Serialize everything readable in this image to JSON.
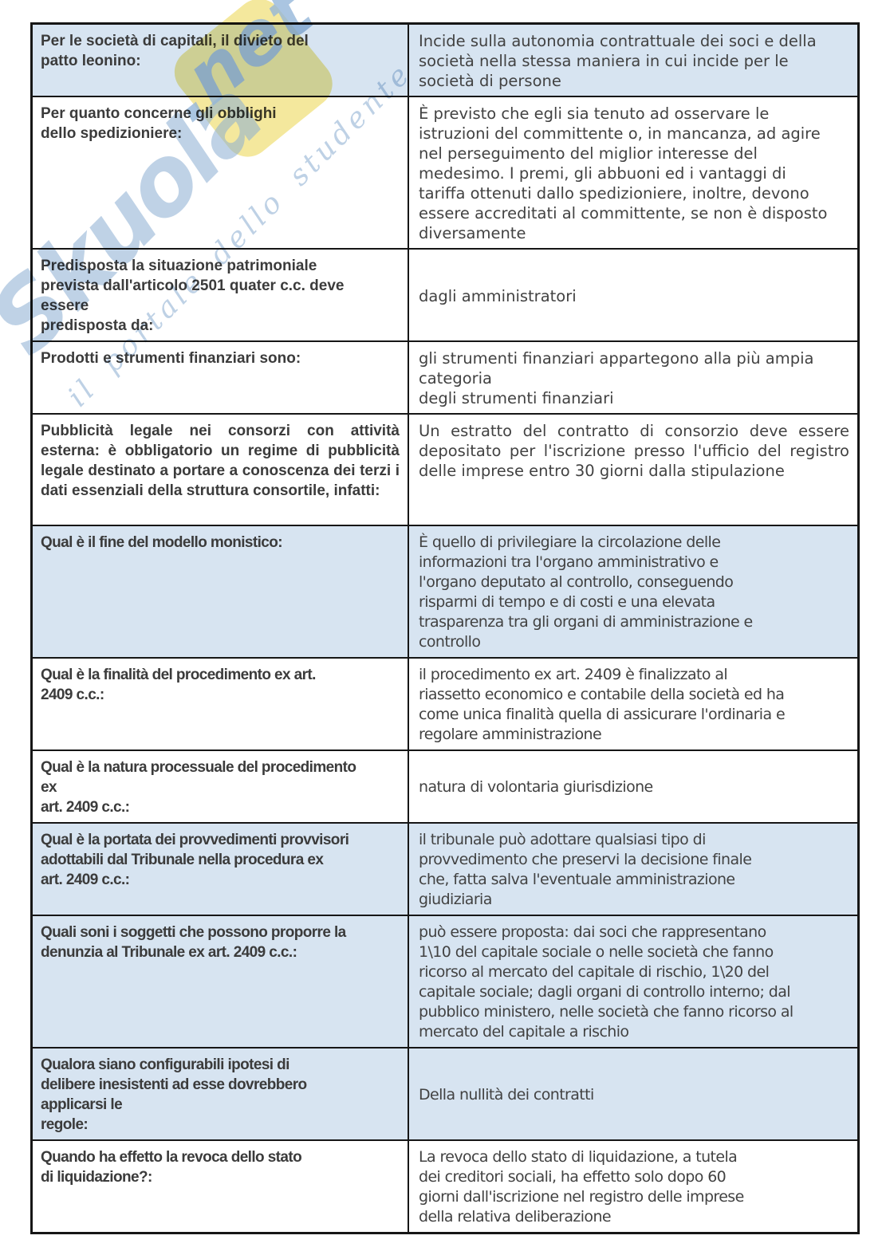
{
  "watermark": {
    "brand": "Skuola",
    "suffix": ".net",
    "tagline": "il portale dello studente",
    "tile_color": "#f3e798",
    "text_color": "#8badd1"
  },
  "table": {
    "colors": {
      "shaded_row_bg": "#d7e4f1",
      "border": "#161616",
      "question_text": "#3b3b3b",
      "answer_text": "#424242"
    },
    "rows": [
      {
        "question": "Per le società di capitali, il divieto del\npatto leonino:",
        "answer": "Incide sulla autonomia contrattuale dei soci e della\nsocietà nella stessa maniera in cui incide per le\nsocietà di persone",
        "shaded": true,
        "narrow": false,
        "justify": false,
        "answer_vcenter": false
      },
      {
        "question": "Per quanto concerne gli obblighi\ndello spedizioniere:",
        "answer": "È previsto che egli sia tenuto ad osservare le\nistruzioni del committente o, in mancanza, ad agire\nnel perseguimento del miglior interesse del\nmedesimo. I premi, gli abbuoni ed i vantaggi di\ntariffa ottenuti dallo spedizioniere, inoltre, devono\nessere accreditati al committente, se non è disposto\ndiversamente",
        "shaded": false,
        "narrow": false,
        "justify": false,
        "answer_vcenter": false
      },
      {
        "question": "Predisposta la situazione patrimoniale\nprevista dall'articolo 2501 quater c.c. deve\nessere\npredisposta da:",
        "answer": "dagli amministratori",
        "shaded": false,
        "narrow": false,
        "justify": false,
        "answer_vcenter": true
      },
      {
        "question": "Prodotti e strumenti finanziari sono:",
        "answer": "gli strumenti finanziari appartegono alla più ampia\ncategoria\ndegli strumenti finanziari",
        "shaded": false,
        "narrow": false,
        "justify": false,
        "answer_vcenter": false
      },
      {
        "question": "Pubblicità legale nei consorzi con attività esterna: è obbligatorio un regime di pubblicità legale destinato a portare a conoscenza dei terzi i dati essenziali della struttura consortile, infatti:",
        "answer": "Un estratto del contratto di consorzio deve essere depositato per l'iscrizione presso l'ufficio del registro delle imprese entro 30 giorni dalla stipulazione",
        "shaded": false,
        "narrow": false,
        "justify": true,
        "answer_vcenter": false
      },
      {
        "question": "Qual è il fine del modello monistico:",
        "answer": "È quello di privilegiare la circolazione delle\ninformazioni tra l'organo amministrativo e\nl'organo deputato al controllo, conseguendo\nrisparmi di tempo e di costi e una elevata\ntrasparenza tra gli organi di amministrazione e\ncontrollo",
        "shaded": true,
        "narrow": true,
        "justify": false,
        "answer_vcenter": false
      },
      {
        "question": "Qual è la finalità del procedimento ex art.\n2409 c.c.:",
        "answer": "il procedimento ex art. 2409 è finalizzato al\nriassetto economico e contabile della società ed ha\ncome unica finalità quella di assicurare l'ordinaria e\nregolare amministrazione",
        "shaded": false,
        "narrow": true,
        "justify": false,
        "answer_vcenter": false
      },
      {
        "question": "Qual è la natura processuale del procedimento\nex\nart. 2409 c.c.:",
        "answer": "natura di volontaria giurisdizione",
        "shaded": false,
        "narrow": true,
        "justify": false,
        "answer_vcenter": true
      },
      {
        "question": "Qual è la portata dei provvedimenti provvisori\nadottabili dal Tribunale nella procedura ex\nart. 2409 c.c.:",
        "answer": "il tribunale può adottare qualsiasi tipo di\nprovvedimento che preservi la decisione finale\nche, fatta salva l'eventuale amministrazione\ngiudiziaria",
        "shaded": true,
        "narrow": true,
        "justify": false,
        "answer_vcenter": false
      },
      {
        "question": "Quali soni i soggetti che possono proporre la\ndenunzia al Tribunale ex art. 2409 c.c.:",
        "answer": "può essere proposta: dai soci che rappresentano\n1\\10 del capitale sociale o nelle società che fanno\nricorso al mercato del capitale di rischio, 1\\20 del\ncapitale sociale; dagli organi di controllo interno; dal\npubblico ministero, nelle società che fanno ricorso al\nmercato del capitale a rischio",
        "shaded": true,
        "narrow": true,
        "justify": false,
        "answer_vcenter": false
      },
      {
        "question": "Qualora siano configurabili ipotesi di\ndelibere inesistenti ad esse dovrebbero\napplicarsi le\nregole:",
        "answer": "Della nullità dei contratti",
        "shaded": true,
        "narrow": true,
        "justify": false,
        "answer_vcenter": true
      },
      {
        "question": "Quando ha effetto la revoca dello stato\ndi liquidazione?:",
        "answer": "La revoca dello stato di liquidazione, a tutela\ndei creditori sociali, ha effetto solo dopo 60\ngiorni dall'iscrizione nel registro delle imprese\ndella relativa deliberazione",
        "shaded": false,
        "narrow": true,
        "justify": false,
        "answer_vcenter": false
      }
    ]
  }
}
